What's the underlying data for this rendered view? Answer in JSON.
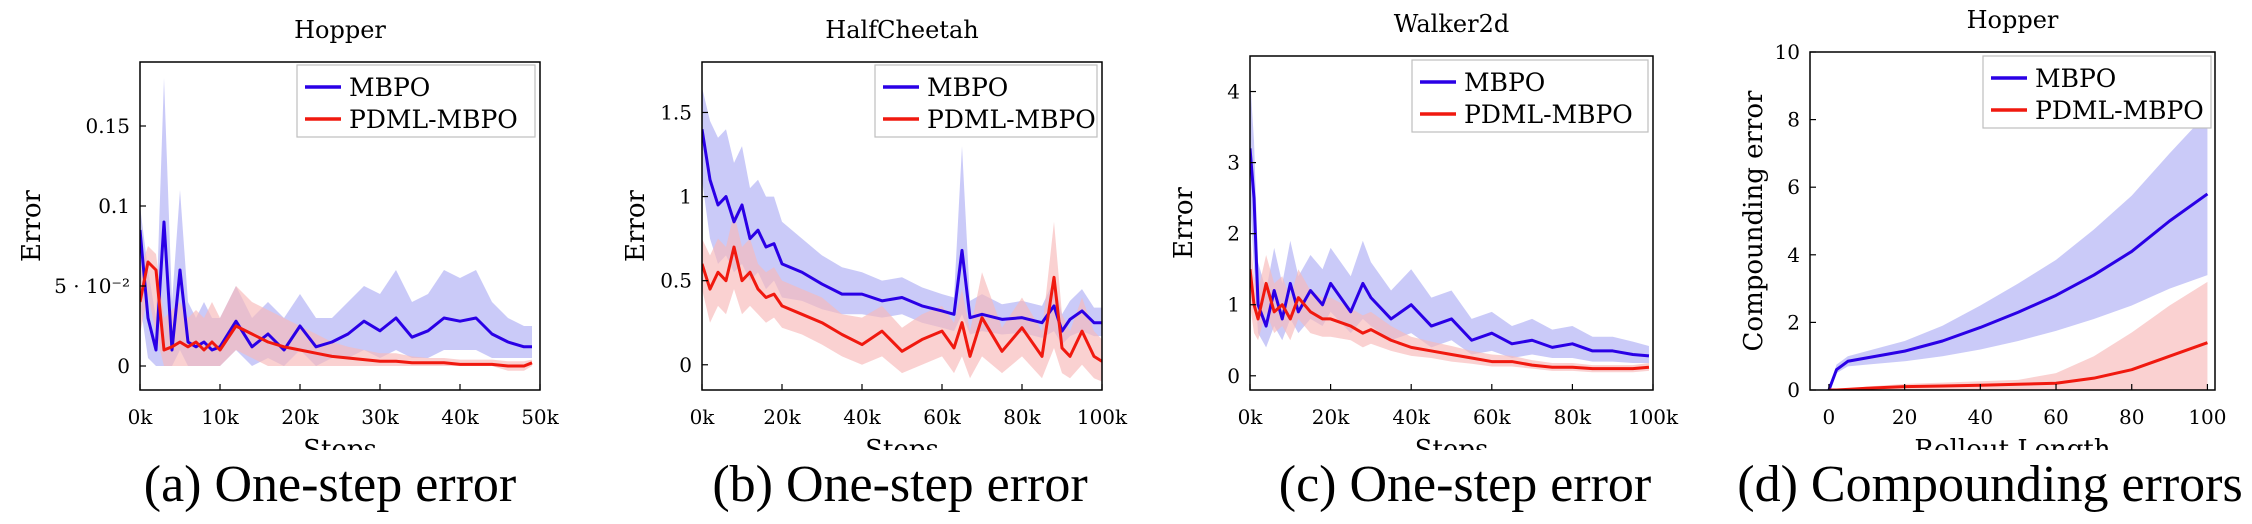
{
  "figure": {
    "captions": [
      "(a) One-step error",
      "(b) One-step error",
      "(c) One-step error",
      "(d) Compounding errors"
    ]
  },
  "colors": {
    "mbpo": "#2a00e6",
    "pdml": "#f0190f",
    "mbpo_band": "#b3b3f5",
    "pdml_band": "#f8b8b8"
  },
  "chart_data": [
    {
      "type": "line",
      "title": "Hopper",
      "xlabel": "Steps",
      "ylabel": "Error",
      "xlim": [
        0,
        50000
      ],
      "ylim": [
        -0.015,
        0.19
      ],
      "xticks": [
        0,
        10000,
        20000,
        30000,
        40000,
        50000
      ],
      "xtick_labels": [
        "0k",
        "10k",
        "20k",
        "30k",
        "40k",
        "50k"
      ],
      "yticks": [
        0,
        0.05,
        0.1,
        0.15
      ],
      "ytick_labels": [
        "0",
        "5 · 10⁻²",
        "0.1",
        "0.15"
      ],
      "legend": "top-right",
      "x": [
        0,
        1000,
        2000,
        3000,
        4000,
        5000,
        6000,
        7000,
        8000,
        9000,
        10000,
        12000,
        14000,
        16000,
        18000,
        20000,
        22000,
        24000,
        26000,
        28000,
        30000,
        32000,
        34000,
        36000,
        38000,
        40000,
        42000,
        44000,
        46000,
        48000,
        49000
      ],
      "series": [
        {
          "name": "MBPO",
          "values": [
            0.085,
            0.03,
            0.01,
            0.09,
            0.01,
            0.06,
            0.015,
            0.012,
            0.015,
            0.01,
            0.012,
            0.028,
            0.012,
            0.02,
            0.01,
            0.025,
            0.012,
            0.015,
            0.02,
            0.028,
            0.022,
            0.03,
            0.018,
            0.022,
            0.03,
            0.028,
            0.03,
            0.02,
            0.015,
            0.012,
            0.012
          ],
          "lower": [
            0.04,
            0.005,
            0.0,
            0.0,
            0.0,
            0.01,
            0.0,
            0.0,
            0.0,
            0.0,
            0.0,
            0.01,
            0.0,
            0.005,
            0.0,
            0.01,
            0.0,
            0.005,
            0.005,
            0.01,
            0.005,
            0.01,
            0.005,
            0.005,
            0.01,
            0.01,
            0.01,
            0.005,
            0.005,
            0.005,
            0.005
          ],
          "upper": [
            0.1,
            0.06,
            0.03,
            0.18,
            0.04,
            0.11,
            0.04,
            0.03,
            0.04,
            0.03,
            0.03,
            0.05,
            0.03,
            0.04,
            0.03,
            0.045,
            0.03,
            0.03,
            0.04,
            0.05,
            0.045,
            0.06,
            0.04,
            0.045,
            0.06,
            0.055,
            0.06,
            0.04,
            0.03,
            0.025,
            0.025
          ]
        },
        {
          "name": "PDML-MBPO",
          "values": [
            0.04,
            0.065,
            0.06,
            0.01,
            0.012,
            0.015,
            0.012,
            0.015,
            0.01,
            0.015,
            0.01,
            0.025,
            0.02,
            0.015,
            0.012,
            0.01,
            0.008,
            0.006,
            0.005,
            0.004,
            0.003,
            0.003,
            0.002,
            0.002,
            0.002,
            0.001,
            0.001,
            0.001,
            0.0,
            0.0,
            0.002
          ],
          "lower": [
            0.02,
            0.045,
            0.02,
            0.0,
            0.0,
            0.0,
            0.0,
            0.0,
            0.0,
            0.0,
            0.0,
            0.01,
            0.005,
            0.0,
            0.0,
            0.0,
            0.0,
            0.0,
            0.0,
            0.0,
            0.0,
            0.0,
            0.0,
            0.0,
            0.0,
            0.0,
            0.0,
            0.0,
            -0.003,
            -0.003,
            0.0
          ],
          "upper": [
            0.06,
            0.075,
            0.07,
            0.03,
            0.035,
            0.04,
            0.03,
            0.035,
            0.03,
            0.04,
            0.03,
            0.05,
            0.04,
            0.035,
            0.03,
            0.025,
            0.02,
            0.015,
            0.012,
            0.01,
            0.008,
            0.008,
            0.006,
            0.005,
            0.005,
            0.004,
            0.004,
            0.004,
            0.003,
            0.003,
            0.004
          ]
        }
      ]
    },
    {
      "type": "line",
      "title": "HalfCheetah",
      "xlabel": "Steps",
      "ylabel": "Error",
      "xlim": [
        0,
        100000
      ],
      "ylim": [
        -0.15,
        1.8
      ],
      "xticks": [
        0,
        20000,
        40000,
        60000,
        80000,
        100000
      ],
      "xtick_labels": [
        "0k",
        "20k",
        "40k",
        "60k",
        "80k",
        "100k"
      ],
      "yticks": [
        0,
        0.5,
        1,
        1.5
      ],
      "ytick_labels": [
        "0",
        "0.5",
        "1",
        "1.5"
      ],
      "legend": "top-right",
      "x": [
        0,
        2000,
        4000,
        6000,
        8000,
        10000,
        12000,
        14000,
        16000,
        18000,
        20000,
        25000,
        30000,
        35000,
        40000,
        45000,
        50000,
        55000,
        60000,
        63000,
        65000,
        67000,
        70000,
        75000,
        80000,
        85000,
        88000,
        90000,
        92000,
        95000,
        98000,
        100000
      ],
      "series": [
        {
          "name": "MBPO",
          "values": [
            1.4,
            1.1,
            0.95,
            1.0,
            0.85,
            0.95,
            0.75,
            0.8,
            0.7,
            0.72,
            0.6,
            0.55,
            0.48,
            0.42,
            0.42,
            0.38,
            0.4,
            0.35,
            0.32,
            0.3,
            0.68,
            0.28,
            0.3,
            0.27,
            0.28,
            0.25,
            0.35,
            0.2,
            0.27,
            0.32,
            0.25,
            0.25
          ],
          "lower": [
            1.1,
            0.75,
            0.6,
            0.65,
            0.55,
            0.6,
            0.5,
            0.55,
            0.45,
            0.5,
            0.4,
            0.38,
            0.33,
            0.3,
            0.3,
            0.28,
            0.3,
            0.25,
            0.22,
            0.2,
            0.3,
            0.18,
            0.2,
            0.18,
            0.19,
            0.16,
            0.2,
            0.12,
            0.17,
            0.2,
            0.17,
            0.17
          ],
          "upper": [
            1.65,
            1.45,
            1.35,
            1.4,
            1.2,
            1.3,
            1.05,
            1.1,
            1.0,
            1.0,
            0.85,
            0.75,
            0.65,
            0.58,
            0.55,
            0.5,
            0.52,
            0.46,
            0.42,
            0.4,
            1.3,
            0.38,
            0.42,
            0.36,
            0.38,
            0.35,
            0.5,
            0.3,
            0.38,
            0.45,
            0.34,
            0.34
          ]
        },
        {
          "name": "PDML-MBPO",
          "values": [
            0.6,
            0.45,
            0.55,
            0.5,
            0.7,
            0.5,
            0.55,
            0.45,
            0.4,
            0.42,
            0.35,
            0.3,
            0.25,
            0.18,
            0.12,
            0.2,
            0.08,
            0.15,
            0.2,
            0.1,
            0.25,
            0.05,
            0.28,
            0.08,
            0.22,
            0.05,
            0.52,
            0.1,
            0.05,
            0.2,
            0.05,
            0.02
          ],
          "lower": [
            0.45,
            0.25,
            0.35,
            0.3,
            0.45,
            0.3,
            0.35,
            0.3,
            0.25,
            0.28,
            0.22,
            0.18,
            0.12,
            0.05,
            0.0,
            0.05,
            -0.05,
            0.0,
            0.05,
            -0.05,
            0.05,
            -0.08,
            0.05,
            -0.05,
            0.05,
            -0.08,
            0.1,
            -0.05,
            -0.08,
            0.0,
            -0.08,
            -0.1
          ],
          "upper": [
            0.75,
            0.65,
            0.75,
            0.7,
            0.9,
            0.7,
            0.75,
            0.6,
            0.55,
            0.58,
            0.5,
            0.45,
            0.4,
            0.3,
            0.28,
            0.35,
            0.22,
            0.3,
            0.35,
            0.25,
            0.45,
            0.2,
            0.55,
            0.22,
            0.4,
            0.2,
            0.85,
            0.3,
            0.2,
            0.4,
            0.2,
            0.15
          ]
        }
      ]
    },
    {
      "type": "line",
      "title": "Walker2d",
      "xlabel": "Steps",
      "ylabel": "Error",
      "xlim": [
        0,
        100000
      ],
      "ylim": [
        -0.2,
        4.5
      ],
      "xticks": [
        0,
        20000,
        40000,
        60000,
        80000,
        100000
      ],
      "xtick_labels": [
        "0k",
        "20k",
        "40k",
        "60k",
        "80k",
        "100k"
      ],
      "yticks": [
        0,
        1,
        2,
        3,
        4
      ],
      "ytick_labels": [
        "0",
        "1",
        "2",
        "3",
        "4"
      ],
      "legend": "top-right",
      "x": [
        0,
        1000,
        2000,
        4000,
        6000,
        8000,
        10000,
        12000,
        15000,
        18000,
        20000,
        25000,
        28000,
        30000,
        35000,
        40000,
        45000,
        50000,
        55000,
        60000,
        65000,
        70000,
        75000,
        80000,
        85000,
        90000,
        95000,
        99000
      ],
      "series": [
        {
          "name": "MBPO",
          "values": [
            3.2,
            2.5,
            1.0,
            0.7,
            1.2,
            0.8,
            1.3,
            0.9,
            1.2,
            1.0,
            1.3,
            0.9,
            1.3,
            1.1,
            0.8,
            1.0,
            0.7,
            0.8,
            0.5,
            0.6,
            0.45,
            0.5,
            0.4,
            0.45,
            0.35,
            0.35,
            0.3,
            0.28
          ],
          "lower": [
            2.5,
            1.5,
            0.6,
            0.4,
            0.7,
            0.5,
            0.8,
            0.6,
            0.8,
            0.7,
            0.9,
            0.6,
            0.8,
            0.7,
            0.5,
            0.6,
            0.4,
            0.5,
            0.3,
            0.35,
            0.25,
            0.3,
            0.25,
            0.25,
            0.2,
            0.2,
            0.18,
            0.18
          ],
          "upper": [
            4.2,
            3.3,
            1.6,
            1.2,
            1.8,
            1.3,
            1.9,
            1.4,
            1.7,
            1.5,
            1.8,
            1.4,
            1.9,
            1.6,
            1.2,
            1.5,
            1.1,
            1.2,
            0.8,
            0.9,
            0.7,
            0.8,
            0.65,
            0.7,
            0.55,
            0.55,
            0.48,
            0.42
          ]
        },
        {
          "name": "PDML-MBPO",
          "values": [
            1.5,
            1.0,
            0.8,
            1.3,
            0.9,
            1.0,
            0.8,
            1.1,
            0.9,
            0.8,
            0.8,
            0.7,
            0.6,
            0.65,
            0.5,
            0.4,
            0.35,
            0.3,
            0.25,
            0.2,
            0.2,
            0.15,
            0.12,
            0.12,
            0.1,
            0.1,
            0.1,
            0.12
          ],
          "lower": [
            1.0,
            0.6,
            0.5,
            0.9,
            0.6,
            0.7,
            0.5,
            0.8,
            0.6,
            0.55,
            0.55,
            0.5,
            0.4,
            0.45,
            0.35,
            0.28,
            0.25,
            0.2,
            0.17,
            0.13,
            0.13,
            0.1,
            0.07,
            0.07,
            0.05,
            0.05,
            0.05,
            0.07
          ],
          "upper": [
            2.0,
            1.4,
            1.2,
            1.7,
            1.3,
            1.4,
            1.1,
            1.5,
            1.2,
            1.1,
            1.1,
            0.95,
            0.85,
            0.9,
            0.7,
            0.55,
            0.48,
            0.42,
            0.35,
            0.3,
            0.28,
            0.22,
            0.18,
            0.18,
            0.15,
            0.15,
            0.15,
            0.18
          ]
        }
      ]
    },
    {
      "type": "line",
      "title": "Hopper",
      "xlabel": "Rollout Length",
      "ylabel": "Compounding error",
      "xlim": [
        -5,
        102
      ],
      "ylim": [
        0,
        10
      ],
      "xticks": [
        0,
        20,
        40,
        60,
        80,
        100
      ],
      "xtick_labels": [
        "0",
        "20",
        "40",
        "60",
        "80",
        "100"
      ],
      "yticks": [
        0,
        2,
        4,
        6,
        8,
        10
      ],
      "ytick_labels": [
        "0",
        "2",
        "4",
        "6",
        "8",
        "10"
      ],
      "legend": "top-right",
      "x": [
        0,
        2,
        5,
        10,
        20,
        30,
        40,
        50,
        60,
        70,
        80,
        90,
        100
      ],
      "series": [
        {
          "name": "MBPO",
          "values": [
            0,
            0.6,
            0.85,
            0.95,
            1.15,
            1.45,
            1.85,
            2.3,
            2.8,
            3.4,
            4.1,
            5.0,
            5.8
          ],
          "lower": [
            0,
            0.5,
            0.7,
            0.75,
            0.85,
            1.0,
            1.2,
            1.45,
            1.75,
            2.1,
            2.5,
            3.0,
            3.4
          ],
          "upper": [
            0,
            0.75,
            1.0,
            1.15,
            1.45,
            1.9,
            2.5,
            3.15,
            3.85,
            4.75,
            5.75,
            7.0,
            8.2
          ]
        },
        {
          "name": "PDML-MBPO",
          "values": [
            0,
            0.0,
            0.02,
            0.05,
            0.1,
            0.12,
            0.14,
            0.17,
            0.2,
            0.35,
            0.6,
            1.0,
            1.4
          ],
          "lower": [
            0,
            0.0,
            0.0,
            0.0,
            0.0,
            0.0,
            0.0,
            0.0,
            0.0,
            0.0,
            0.0,
            0.0,
            0.0
          ],
          "upper": [
            0,
            0.0,
            0.04,
            0.1,
            0.18,
            0.22,
            0.26,
            0.3,
            0.5,
            1.0,
            1.7,
            2.5,
            3.2
          ]
        }
      ]
    }
  ]
}
